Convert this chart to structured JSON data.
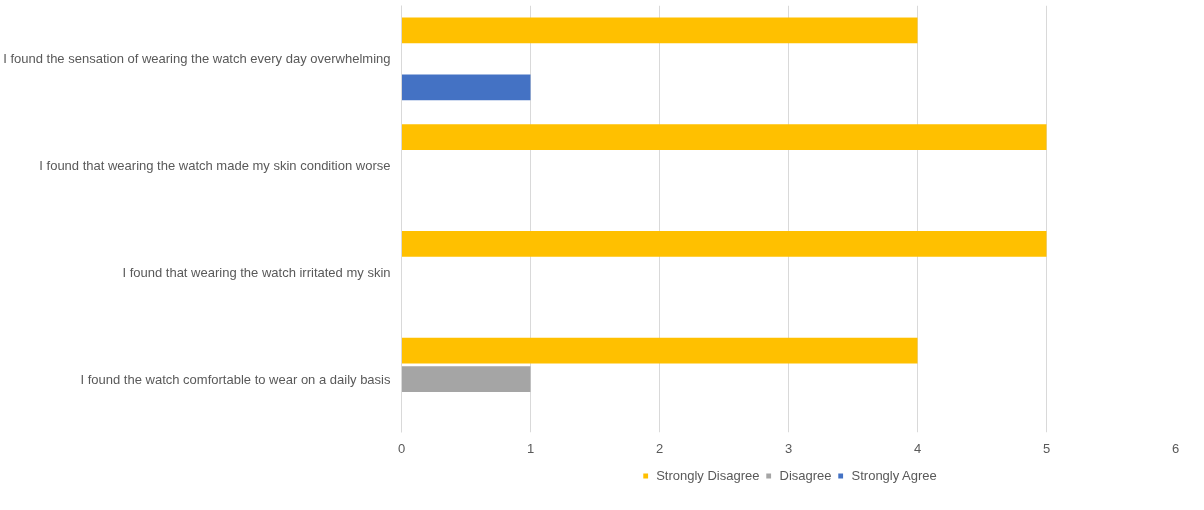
{
  "chart_data": {
    "type": "bar",
    "orientation": "horizontal",
    "categories": [
      "I found the sensation of wearing the watch every day overwhelming",
      "I found that wearing the watch made my skin condition worse",
      "I found that wearing the watch irritated my skin",
      "I found the watch comfortable to wear on a daily basis"
    ],
    "series": [
      {
        "name": "Strongly Disagree",
        "color": "#ffc000",
        "values": [
          4,
          5,
          5,
          4
        ]
      },
      {
        "name": "Disagree",
        "color": "#a5a5a5",
        "values": [
          null,
          null,
          null,
          1
        ]
      },
      {
        "name": "Strongly Agree",
        "color": "#4472c4",
        "values": [
          1,
          null,
          null,
          null
        ]
      }
    ],
    "xlim": [
      0,
      6
    ],
    "xticks": [
      0,
      1,
      2,
      3,
      4,
      5,
      6
    ],
    "grid": "x",
    "legend": "bottom"
  }
}
